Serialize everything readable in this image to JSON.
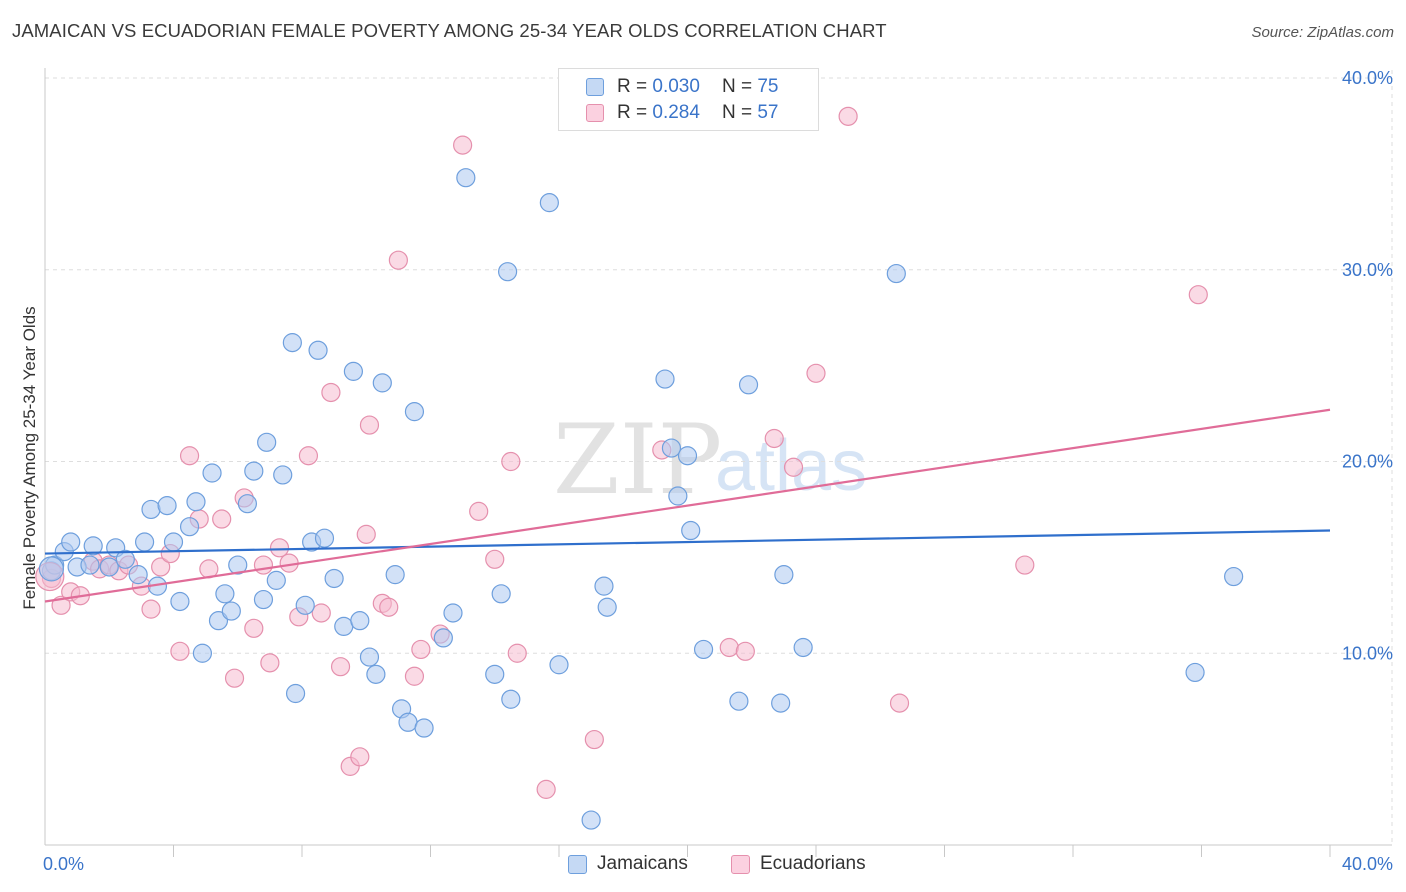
{
  "title": "JAMAICAN VS ECUADORIAN FEMALE POVERTY AMONG 25-34 YEAR OLDS CORRELATION CHART",
  "source": "Source: ZipAtlas.com",
  "watermark": {
    "zip": "ZIP",
    "atlas": "atlas"
  },
  "legend": {
    "rows": [
      {
        "r_label": "R =",
        "r_value": "0.030",
        "n_label": "N =",
        "n_value": "75"
      },
      {
        "r_label": "R =",
        "r_value": "0.284",
        "n_label": "N =",
        "n_value": "57"
      }
    ]
  },
  "colors": {
    "jamaicans_fill": "#adc9f0",
    "jamaicans_stroke": "#6e9fdd",
    "jamaicans_line": "#2f6fcc",
    "ecuadorians_fill": "#f6bcd0",
    "ecuadorians_stroke": "#e590ad",
    "ecuadorians_line": "#e06c98",
    "grid": "#dedede",
    "axis_text": "#3a74c9"
  },
  "chart_data": {
    "type": "scatter",
    "title": "JAMAICAN VS ECUADORIAN FEMALE POVERTY AMONG 25-34 YEAR OLDS CORRELATION CHART",
    "xlabel": "",
    "ylabel": "Female Poverty Among 25-34 Year Olds",
    "xlim": [
      0,
      40
    ],
    "ylim": [
      0,
      40
    ],
    "x_tick_labels": [
      {
        "value": 0,
        "label": "0.0%"
      },
      {
        "value": 40,
        "label": "40.0%"
      }
    ],
    "y_tick_labels": [
      {
        "value": 10,
        "label": "10.0%"
      },
      {
        "value": 20,
        "label": "20.0%"
      },
      {
        "value": 30,
        "label": "30.0%"
      },
      {
        "value": 40,
        "label": "40.0%"
      }
    ],
    "series": [
      {
        "name": "Jamaicans",
        "R": 0.03,
        "N": 75,
        "trend": {
          "x": [
            0,
            40
          ],
          "y": [
            15.2,
            16.4
          ]
        },
        "points": [
          [
            0.2,
            14.3
          ],
          [
            0.3,
            14.6
          ],
          [
            0.6,
            15.3
          ],
          [
            0.8,
            15.8
          ],
          [
            1.0,
            14.5
          ],
          [
            1.4,
            14.6
          ],
          [
            1.5,
            15.6
          ],
          [
            2.0,
            14.5
          ],
          [
            2.2,
            15.5
          ],
          [
            2.5,
            14.9
          ],
          [
            2.9,
            14.1
          ],
          [
            3.1,
            15.8
          ],
          [
            3.3,
            17.5
          ],
          [
            3.5,
            13.5
          ],
          [
            3.8,
            17.7
          ],
          [
            4.0,
            15.8
          ],
          [
            4.2,
            12.7
          ],
          [
            4.5,
            16.6
          ],
          [
            4.7,
            17.9
          ],
          [
            4.9,
            10.0
          ],
          [
            5.2,
            19.4
          ],
          [
            5.4,
            11.7
          ],
          [
            5.6,
            13.1
          ],
          [
            5.8,
            12.2
          ],
          [
            6.0,
            14.6
          ],
          [
            6.3,
            17.8
          ],
          [
            6.5,
            19.5
          ],
          [
            6.8,
            12.8
          ],
          [
            6.9,
            21.0
          ],
          [
            7.2,
            13.8
          ],
          [
            7.4,
            19.3
          ],
          [
            7.7,
            26.2
          ],
          [
            7.8,
            7.9
          ],
          [
            8.1,
            12.5
          ],
          [
            8.3,
            15.8
          ],
          [
            8.5,
            25.8
          ],
          [
            8.7,
            16.0
          ],
          [
            9.0,
            13.9
          ],
          [
            9.3,
            11.4
          ],
          [
            9.6,
            24.7
          ],
          [
            9.8,
            11.7
          ],
          [
            10.1,
            9.8
          ],
          [
            10.3,
            8.9
          ],
          [
            10.5,
            24.1
          ],
          [
            10.9,
            14.1
          ],
          [
            11.1,
            7.1
          ],
          [
            11.3,
            6.4
          ],
          [
            11.5,
            22.6
          ],
          [
            11.8,
            6.1
          ],
          [
            12.4,
            10.8
          ],
          [
            12.7,
            12.1
          ],
          [
            13.1,
            34.8
          ],
          [
            14.0,
            8.9
          ],
          [
            14.2,
            13.1
          ],
          [
            14.4,
            29.9
          ],
          [
            14.5,
            7.6
          ],
          [
            15.7,
            33.5
          ],
          [
            16.0,
            9.4
          ],
          [
            17.0,
            1.3
          ],
          [
            17.4,
            13.5
          ],
          [
            17.5,
            12.4
          ],
          [
            19.3,
            24.3
          ],
          [
            19.5,
            20.7
          ],
          [
            19.7,
            18.2
          ],
          [
            20.0,
            20.3
          ],
          [
            20.1,
            16.4
          ],
          [
            20.5,
            10.2
          ],
          [
            21.6,
            7.5
          ],
          [
            21.9,
            24.0
          ],
          [
            23.0,
            14.1
          ],
          [
            22.9,
            7.4
          ],
          [
            23.6,
            10.3
          ],
          [
            26.5,
            29.8
          ],
          [
            35.8,
            9.0
          ],
          [
            37.0,
            14.0
          ]
        ]
      },
      {
        "name": "Ecuadorians",
        "R": 0.284,
        "N": 57,
        "trend": {
          "x": [
            0,
            40
          ],
          "y": [
            12.7,
            22.7
          ]
        },
        "points": [
          [
            0.2,
            13.9
          ],
          [
            0.5,
            12.5
          ],
          [
            0.8,
            13.2
          ],
          [
            1.1,
            13.0
          ],
          [
            1.5,
            14.8
          ],
          [
            1.7,
            14.4
          ],
          [
            2.0,
            14.6
          ],
          [
            2.3,
            14.3
          ],
          [
            2.6,
            14.6
          ],
          [
            3.0,
            13.5
          ],
          [
            3.3,
            12.3
          ],
          [
            3.6,
            14.5
          ],
          [
            3.9,
            15.2
          ],
          [
            4.2,
            10.1
          ],
          [
            4.5,
            20.3
          ],
          [
            4.8,
            17.0
          ],
          [
            5.1,
            14.4
          ],
          [
            5.5,
            17.0
          ],
          [
            5.9,
            8.7
          ],
          [
            6.2,
            18.1
          ],
          [
            6.5,
            11.3
          ],
          [
            6.8,
            14.6
          ],
          [
            7.0,
            9.5
          ],
          [
            7.3,
            15.5
          ],
          [
            7.6,
            14.7
          ],
          [
            7.9,
            11.9
          ],
          [
            8.2,
            20.3
          ],
          [
            8.6,
            12.1
          ],
          [
            8.9,
            23.6
          ],
          [
            9.2,
            9.3
          ],
          [
            9.5,
            4.1
          ],
          [
            9.8,
            4.6
          ],
          [
            10.0,
            16.2
          ],
          [
            10.1,
            21.9
          ],
          [
            10.5,
            12.6
          ],
          [
            10.7,
            12.4
          ],
          [
            11.0,
            30.5
          ],
          [
            11.5,
            8.8
          ],
          [
            11.7,
            10.2
          ],
          [
            12.3,
            11.0
          ],
          [
            13.0,
            36.5
          ],
          [
            13.5,
            17.4
          ],
          [
            14.0,
            14.9
          ],
          [
            14.5,
            20.0
          ],
          [
            14.7,
            10.0
          ],
          [
            15.6,
            2.9
          ],
          [
            17.1,
            5.5
          ],
          [
            19.2,
            20.6
          ],
          [
            21.3,
            10.3
          ],
          [
            21.8,
            10.1
          ],
          [
            22.7,
            21.2
          ],
          [
            23.3,
            19.7
          ],
          [
            24.0,
            24.6
          ],
          [
            25.0,
            38.0
          ],
          [
            26.6,
            7.4
          ],
          [
            30.5,
            14.6
          ],
          [
            35.9,
            28.7
          ]
        ]
      }
    ]
  },
  "bottom_legend": [
    {
      "label": "Jamaicans"
    },
    {
      "label": "Ecuadorians"
    }
  ]
}
